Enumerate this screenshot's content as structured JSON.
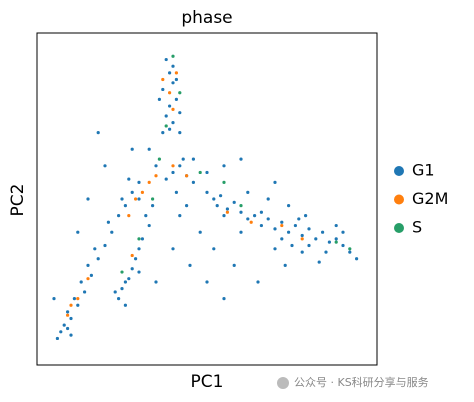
{
  "chart_data": {
    "type": "scatter",
    "title": "phase",
    "x_label": "PC1",
    "y_label": "PC2",
    "xlim": [
      0,
      100
    ],
    "ylim": [
      0,
      100
    ],
    "grid": false,
    "legend": "right",
    "watermark": "公众号 · KS科研分享与服务",
    "series": [
      {
        "name": "G1",
        "color": "#1f77b4",
        "x": [
          38,
          39,
          40,
          37,
          41,
          39,
          38,
          40,
          42,
          36,
          40,
          41,
          39,
          37,
          42,
          42,
          40,
          44,
          38,
          43,
          46,
          41,
          35,
          33,
          30,
          46,
          50,
          44,
          42,
          8,
          7,
          10,
          9,
          12,
          11,
          14,
          13,
          16,
          15,
          18,
          17,
          20,
          22,
          21,
          24,
          26,
          25,
          28,
          30,
          27,
          6,
          10,
          9,
          24,
          26,
          25,
          27,
          28,
          29,
          30,
          31,
          33,
          32,
          34,
          23,
          26,
          30,
          50,
          52,
          54,
          53,
          56,
          58,
          55,
          60,
          62,
          64,
          66,
          68,
          70,
          72,
          74,
          76,
          78,
          80,
          82,
          84,
          86,
          88,
          90,
          92,
          94,
          75,
          78,
          80,
          72,
          70,
          66,
          68,
          62,
          74,
          85,
          83,
          77,
          73,
          79,
          88,
          90,
          60,
          20,
          15,
          12,
          55,
          60,
          70,
          40,
          45,
          50,
          55,
          48,
          35,
          65,
          5,
          18,
          28,
          58,
          52
        ],
        "values": [
          92,
          88,
          85,
          83,
          80,
          78,
          75,
          73,
          76,
          80,
          90,
          86,
          71,
          70,
          70,
          60,
          58,
          57,
          56,
          62,
          55,
          52,
          60,
          65,
          55,
          62,
          58,
          48,
          45,
          12,
          10,
          14,
          16,
          18,
          20,
          22,
          25,
          27,
          30,
          32,
          35,
          36,
          40,
          43,
          45,
          48,
          50,
          52,
          50,
          56,
          8,
          9,
          11,
          20,
          18,
          23,
          26,
          29,
          32,
          35,
          38,
          42,
          45,
          48,
          22,
          25,
          28,
          52,
          50,
          51,
          48,
          47,
          49,
          45,
          46,
          44,
          45,
          42,
          44,
          41,
          43,
          40,
          42,
          39,
          41,
          38,
          40,
          37,
          38,
          36,
          34,
          32,
          36,
          34,
          36,
          38,
          35,
          46,
          50,
          52,
          48,
          34,
          31,
          44,
          30,
          45,
          42,
          40,
          40,
          60,
          50,
          40,
          60,
          62,
          55,
          35,
          30,
          25,
          20,
          40,
          25,
          25,
          20,
          70,
          65,
          30,
          35
        ]
      },
      {
        "name": "G2M",
        "color": "#ff7f0e",
        "x": [
          37,
          39,
          40,
          41,
          33,
          31,
          29,
          35,
          27,
          12,
          10,
          15,
          56,
          63,
          72,
          78,
          44,
          40,
          9,
          28
        ],
        "values": [
          86,
          82,
          77,
          88,
          55,
          52,
          50,
          57,
          45,
          20,
          18,
          26,
          46,
          43,
          42,
          38,
          57,
          60,
          15,
          33
        ]
      },
      {
        "name": "S",
        "color": "#279e68",
        "x": [
          40,
          42,
          38,
          36,
          34,
          48,
          88,
          92,
          30,
          25,
          60,
          55
        ],
        "values": [
          93,
          82,
          72,
          62,
          50,
          58,
          37,
          35,
          38,
          28,
          48,
          55
        ]
      }
    ]
  }
}
